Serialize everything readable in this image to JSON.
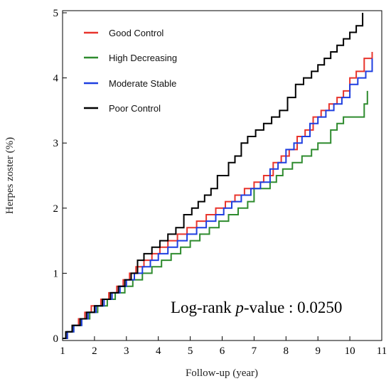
{
  "chart_data": {
    "type": "line",
    "title": "",
    "xlabel": "Follow-up (year)",
    "ylabel": "Herpes zoster (%)",
    "xlim": [
      1,
      11
    ],
    "ylim": [
      0,
      5
    ],
    "xticks": [
      "1",
      "2",
      "3",
      "4",
      "5",
      "6",
      "7",
      "8",
      "9",
      "10",
      "11"
    ],
    "yticks": [
      "0",
      "1",
      "2",
      "3",
      "4",
      "5"
    ],
    "legend_position": "top-left",
    "annotation": {
      "prefix": "Log-rank ",
      "italic": "p",
      "suffix": "-value : 0.0250"
    },
    "series": [
      {
        "name": "Good Control",
        "color": "#e8342c",
        "x": [
          1,
          1.15,
          1.3,
          1.5,
          1.7,
          1.9,
          2.2,
          2.45,
          2.7,
          2.9,
          3.1,
          3.3,
          3.55,
          3.8,
          4.05,
          4.3,
          4.6,
          4.9,
          5.2,
          5.5,
          5.8,
          6.1,
          6.4,
          6.7,
          7.0,
          7.3,
          7.6,
          7.85,
          8.1,
          8.35,
          8.6,
          8.85,
          9.1,
          9.35,
          9.6,
          9.8,
          10.0,
          10.2,
          10.45,
          10.7
        ],
        "y": [
          0,
          0.1,
          0.2,
          0.3,
          0.4,
          0.5,
          0.6,
          0.7,
          0.8,
          0.9,
          1.0,
          1.1,
          1.2,
          1.3,
          1.4,
          1.5,
          1.6,
          1.7,
          1.8,
          1.9,
          2.0,
          2.1,
          2.2,
          2.3,
          2.4,
          2.5,
          2.7,
          2.8,
          2.9,
          3.1,
          3.2,
          3.4,
          3.5,
          3.6,
          3.7,
          3.8,
          4.0,
          4.1,
          4.3,
          4.4
        ]
      },
      {
        "name": "High Decreasing",
        "color": "#2e8b2e",
        "x": [
          1,
          1.15,
          1.35,
          1.6,
          1.85,
          2.1,
          2.4,
          2.65,
          2.95,
          3.2,
          3.5,
          3.8,
          4.1,
          4.4,
          4.7,
          5.0,
          5.3,
          5.6,
          5.9,
          6.2,
          6.5,
          6.8,
          7.0,
          7.5,
          7.7,
          7.9,
          8.2,
          8.5,
          8.8,
          9.0,
          9.4,
          9.6,
          9.8,
          10.45,
          10.55
        ],
        "y": [
          0,
          0.1,
          0.2,
          0.3,
          0.4,
          0.5,
          0.6,
          0.7,
          0.8,
          0.9,
          1.0,
          1.1,
          1.2,
          1.3,
          1.4,
          1.5,
          1.6,
          1.7,
          1.8,
          1.9,
          2.0,
          2.1,
          2.3,
          2.4,
          2.5,
          2.6,
          2.7,
          2.8,
          2.9,
          3.0,
          3.2,
          3.3,
          3.4,
          3.6,
          3.8
        ]
      },
      {
        "name": "Moderate Stable",
        "color": "#1f3fe0",
        "x": [
          1,
          1.15,
          1.35,
          1.6,
          1.8,
          2.05,
          2.3,
          2.55,
          2.8,
          3.0,
          3.25,
          3.5,
          3.75,
          4.0,
          4.3,
          4.6,
          4.9,
          5.2,
          5.5,
          5.8,
          6.05,
          6.3,
          6.6,
          6.9,
          7.2,
          7.5,
          7.75,
          8.0,
          8.25,
          8.5,
          8.75,
          9.0,
          9.25,
          9.5,
          9.75,
          10.0,
          10.25,
          10.5,
          10.7
        ],
        "y": [
          0,
          0.1,
          0.2,
          0.3,
          0.4,
          0.5,
          0.6,
          0.7,
          0.8,
          0.9,
          1.0,
          1.1,
          1.2,
          1.3,
          1.4,
          1.5,
          1.6,
          1.7,
          1.8,
          1.9,
          2.0,
          2.1,
          2.2,
          2.3,
          2.4,
          2.6,
          2.7,
          2.9,
          3.0,
          3.1,
          3.3,
          3.4,
          3.5,
          3.6,
          3.7,
          3.9,
          4.0,
          4.1,
          4.3
        ]
      },
      {
        "name": "Poor Control",
        "color": "#000000",
        "x": [
          1,
          1.1,
          1.3,
          1.55,
          1.75,
          2.0,
          2.25,
          2.5,
          2.75,
          2.95,
          3.15,
          3.35,
          3.55,
          3.8,
          4.05,
          4.3,
          4.55,
          4.8,
          5.05,
          5.25,
          5.45,
          5.65,
          5.85,
          6.2,
          6.4,
          6.6,
          6.8,
          7.05,
          7.3,
          7.55,
          7.8,
          8.05,
          8.3,
          8.55,
          8.8,
          9.0,
          9.2,
          9.4,
          9.6,
          9.8,
          10.0,
          10.2,
          10.4
        ],
        "y": [
          0,
          0.1,
          0.2,
          0.3,
          0.4,
          0.5,
          0.6,
          0.7,
          0.8,
          0.9,
          1.0,
          1.2,
          1.3,
          1.4,
          1.5,
          1.6,
          1.7,
          1.9,
          2.0,
          2.1,
          2.2,
          2.3,
          2.5,
          2.7,
          2.8,
          3.0,
          3.1,
          3.2,
          3.3,
          3.4,
          3.5,
          3.7,
          3.9,
          4.0,
          4.1,
          4.2,
          4.3,
          4.4,
          4.5,
          4.6,
          4.7,
          4.8,
          5.0
        ]
      }
    ]
  }
}
